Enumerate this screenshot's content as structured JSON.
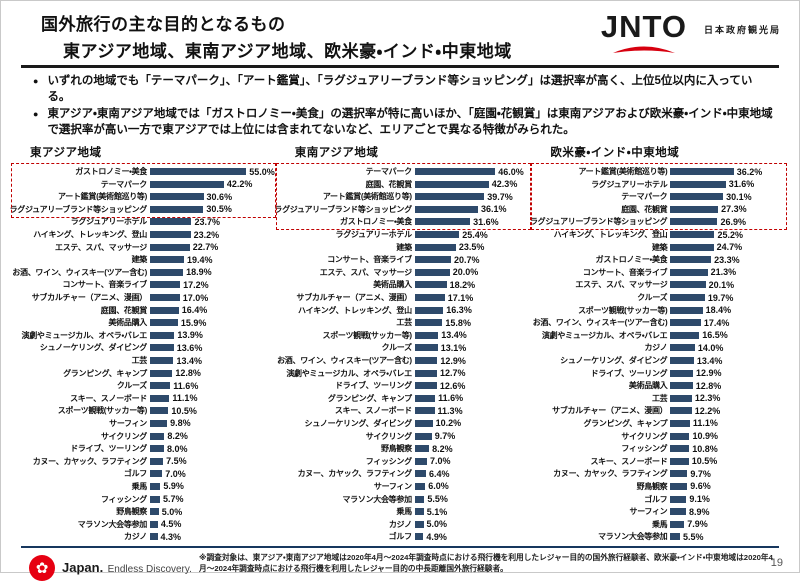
{
  "header": {
    "title_line1": "国外旅行の主な目的となるもの",
    "title_line2": "東アジア地域、東南アジア地域、欧米豪・インド・中東地域",
    "jnto_logo": "JNTO",
    "jnto_subtitle": "日本政府観光局"
  },
  "bullets": [
    "いずれの地域でも「テーマパーク」、「アート鑑賞」、「ラグジュアリーブランド等ショッピング」は選択率が高く、上位5位以内に入っている。",
    "東アジア・東南アジア地域では「ガストロノミー・美食」の選択率が特に高いほか、「庭園・花観賞」は東南アジアおよび欧米豪・インド・中東地域で選択率が高い一方で東アジアでは上位には含まれてないなど、エリアごとで異なる特徴がみられた。"
  ],
  "chart_data": [
    {
      "type": "bar",
      "orientation": "horizontal",
      "title": "東アジア地域",
      "value_suffix": "%",
      "xlim": [
        0,
        60
      ],
      "highlight_box_top_n": 4,
      "categories": [
        "ガストロノミー・美食",
        "テーマパーク",
        "アート鑑賞(美術館巡り等)",
        "ラグジュアリーブランド等ショッピング",
        "ラグジュアリーホテル",
        "ハイキング、トレッキング、登山",
        "エステ、スパ、マッサージ",
        "建築",
        "お酒、ワイン、ウィスキー(ツアー含む)",
        "コンサート、音楽ライブ",
        "サブカルチャー（アニメ、漫画）",
        "庭園、花観賞",
        "美術品購入",
        "演劇やミュージカル、オペラ・バレエ",
        "シュノーケリング、ダイビング",
        "工芸",
        "グランピング、キャンプ",
        "クルーズ",
        "スキー、スノーボード",
        "スポーツ観戦(サッカー等)",
        "サーフィン",
        "サイクリング",
        "ドライブ、ツーリング",
        "カヌー、カヤック、ラフティング",
        "ゴルフ",
        "乗馬",
        "フィッシング",
        "野鳥観察",
        "マラソン大会等参加",
        "カジノ"
      ],
      "values": [
        55.0,
        42.2,
        30.6,
        30.5,
        23.7,
        23.2,
        22.7,
        19.4,
        18.9,
        17.2,
        17.0,
        16.4,
        15.9,
        13.9,
        13.6,
        13.4,
        12.8,
        11.6,
        11.1,
        10.5,
        9.8,
        8.2,
        8.0,
        7.5,
        7.0,
        5.9,
        5.7,
        5.0,
        4.5,
        4.3
      ]
    },
    {
      "type": "bar",
      "orientation": "horizontal",
      "title": "東南アジア地域",
      "value_suffix": "%",
      "xlim": [
        0,
        60
      ],
      "highlight_box_top_n": 5,
      "categories": [
        "テーマパーク",
        "庭園、花観賞",
        "アート鑑賞(美術館巡り等)",
        "ラグジュアリーブランド等ショッピング",
        "ガストロノミー・美食",
        "ラグジュアリーホテル",
        "建築",
        "コンサート、音楽ライブ",
        "エステ、スパ、マッサージ",
        "美術品購入",
        "サブカルチャー（アニメ、漫画）",
        "ハイキング、トレッキング、登山",
        "工芸",
        "スポーツ観戦(サッカー等)",
        "クルーズ",
        "お酒、ワイン、ウィスキー(ツアー含む)",
        "演劇やミュージカル、オペラ・バレエ",
        "ドライブ、ツーリング",
        "グランピング、キャンプ",
        "スキー、スノーボード",
        "シュノーケリング、ダイビング",
        "サイクリング",
        "野鳥観察",
        "フィッシング",
        "カヌー、カヤック、ラフティング",
        "サーフィン",
        "マラソン大会等参加",
        "乗馬",
        "カジノ",
        "ゴルフ"
      ],
      "values": [
        46.0,
        42.3,
        39.7,
        36.1,
        31.6,
        25.4,
        23.5,
        20.7,
        20.0,
        18.2,
        17.1,
        16.3,
        15.8,
        13.4,
        13.1,
        12.9,
        12.7,
        12.6,
        11.6,
        11.3,
        10.2,
        9.7,
        8.2,
        7.0,
        6.4,
        6.0,
        5.5,
        5.1,
        5.0,
        4.9
      ]
    },
    {
      "type": "bar",
      "orientation": "horizontal",
      "title": "欧米豪・インド・中東地域",
      "value_suffix": "%",
      "xlim": [
        0,
        60
      ],
      "highlight_box_top_n": 5,
      "categories": [
        "アート鑑賞(美術館巡り等)",
        "ラグジュアリーホテル",
        "テーマパーク",
        "庭園、花観賞",
        "ラグジュアリーブランド等ショッピング",
        "ハイキング、トレッキング、登山",
        "建築",
        "ガストロノミー・美食",
        "コンサート、音楽ライブ",
        "エステ、スパ、マッサージ",
        "クルーズ",
        "スポーツ観戦(サッカー等)",
        "お酒、ワイン、ウィスキー(ツアー含む)",
        "演劇やミュージカル、オペラ・バレエ",
        "カジノ",
        "シュノーケリング、ダイビング",
        "ドライブ、ツーリング",
        "美術品購入",
        "工芸",
        "サブカルチャー（アニメ、漫画）",
        "グランピング、キャンプ",
        "サイクリング",
        "フィッシング",
        "スキー、スノーボード",
        "カヌー、カヤック、ラフティング",
        "野鳥観察",
        "ゴルフ",
        "サーフィン",
        "乗馬",
        "マラソン大会等参加"
      ],
      "values": [
        36.2,
        31.6,
        30.1,
        27.3,
        26.9,
        25.2,
        24.7,
        23.3,
        21.3,
        20.1,
        19.7,
        18.4,
        17.4,
        16.5,
        14.0,
        13.4,
        12.9,
        12.8,
        12.3,
        12.2,
        11.1,
        10.9,
        10.8,
        10.5,
        9.7,
        9.6,
        9.1,
        8.9,
        7.9,
        5.5
      ]
    }
  ],
  "footer": {
    "brand_bold": "Japan.",
    "brand_rest": "Endless Discovery.",
    "note": "※調査対象は、東アジア・東南アジア地域は2020年4月～2024年調査時点における飛行機を利用したレジャー目的の国外旅行経験者、欧米豪・インド・中東地域は2020年4月～2024年調査時点における飛行機を利用したレジャー目的の中長距離国外旅行経験者。",
    "page_number": "19"
  },
  "colors": {
    "bar": "#2e4a6b",
    "highlight_box": "#c00000",
    "brand_red": "#e60012",
    "jnto_arc_red": "#d7000f",
    "bottom_rule": "#17375e"
  },
  "icons": {
    "bullet": "●",
    "sakura": "✿"
  }
}
